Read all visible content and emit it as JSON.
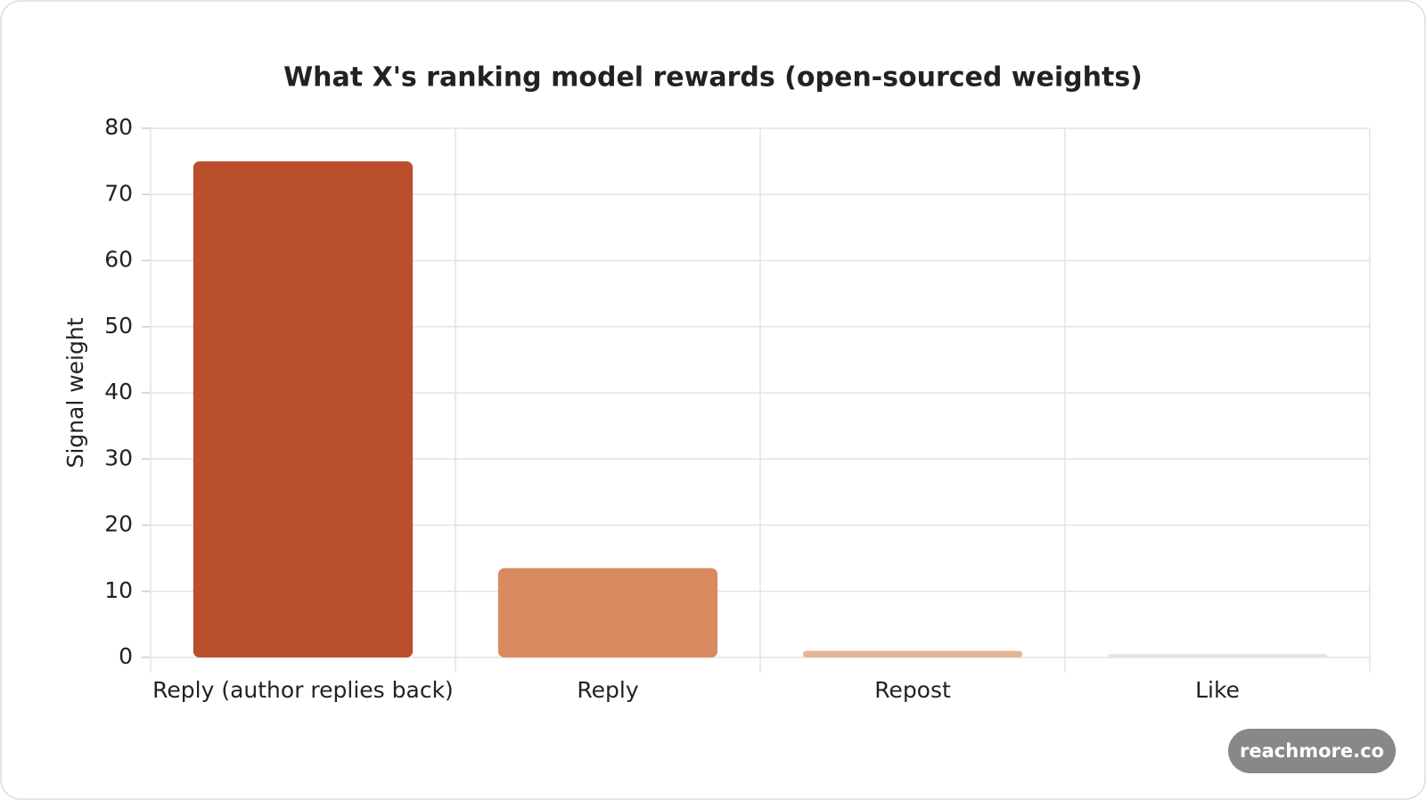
{
  "chart_data": {
    "type": "bar",
    "title": "What X's ranking model rewards (open-sourced weights)",
    "y_label": "Signal weight",
    "categories": [
      "Reply (author replies back)",
      "Reply",
      "Repost",
      "Like"
    ],
    "values": [
      75,
      13.5,
      1,
      0.5
    ],
    "colors": [
      "#b9502b",
      "#d98a60",
      "#e5b595",
      "#e9e4da"
    ],
    "ylim": [
      0,
      80
    ],
    "yticks": [
      0,
      10,
      20,
      30,
      40,
      50,
      60,
      70,
      80
    ],
    "grid": true
  },
  "watermark": "reachmore.co"
}
